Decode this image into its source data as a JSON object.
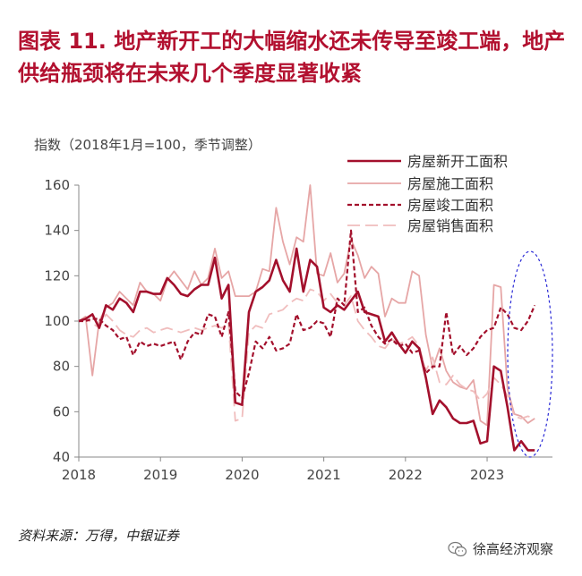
{
  "title": "图表 11. 地产新开工的大幅缩水还未传导至竣工端，地产供给瓶颈将在未来几个季度显著收紧",
  "source_note": "资料来源：万得，中银证券",
  "watermark": "徐高经济观察",
  "colors": {
    "title": "#b2102f",
    "new_starts": "#a3102c",
    "under_construction": "#e6a6a6",
    "completions": "#a3102c",
    "sales": "#f0bdbd",
    "ellipse": "#2a2ad6",
    "axis": "#888888"
  },
  "chart_data": {
    "type": "line",
    "ylabel": "指数（2018年1月=100，季节调整）",
    "ylim": [
      40,
      160
    ],
    "yticks": [
      40,
      60,
      80,
      100,
      120,
      140,
      160
    ],
    "xlim": [
      2018,
      2023.8
    ],
    "xticks": [
      "2018",
      "2019",
      "2020",
      "2021",
      "2022",
      "2023"
    ],
    "annotation": "dashed blue ellipse highlighting 2023 divergence between completions and new starts",
    "series": [
      {
        "name": "房屋新开工面积",
        "style": "solid-thick",
        "x": [
          2018.0,
          2018.083,
          2018.167,
          2018.25,
          2018.333,
          2018.417,
          2018.5,
          2018.583,
          2018.667,
          2018.75,
          2018.833,
          2018.917,
          2019.0,
          2019.083,
          2019.167,
          2019.25,
          2019.333,
          2019.417,
          2019.5,
          2019.583,
          2019.667,
          2019.75,
          2019.833,
          2019.917,
          2020.0,
          2020.083,
          2020.167,
          2020.25,
          2020.333,
          2020.417,
          2020.5,
          2020.583,
          2020.667,
          2020.75,
          2020.833,
          2020.917,
          2021.0,
          2021.083,
          2021.167,
          2021.25,
          2021.333,
          2021.417,
          2021.5,
          2021.583,
          2021.667,
          2021.75,
          2021.833,
          2021.917,
          2022.0,
          2022.083,
          2022.167,
          2022.25,
          2022.333,
          2022.417,
          2022.5,
          2022.583,
          2022.667,
          2022.75,
          2022.833,
          2022.917,
          2023.0,
          2023.083,
          2023.167,
          2023.25,
          2023.333,
          2023.417,
          2023.5,
          2023.583
        ],
        "values": [
          100,
          101,
          103,
          97,
          107,
          105,
          110,
          108,
          104,
          113,
          113,
          112,
          112,
          119,
          116,
          112,
          111,
          114,
          116,
          116,
          128,
          110,
          116,
          64,
          63,
          104,
          113,
          115,
          118,
          127,
          118,
          113,
          132,
          113,
          127,
          124,
          106,
          104,
          107,
          105,
          109,
          113,
          104,
          103,
          102,
          91,
          95,
          90,
          86,
          91,
          88,
          75,
          59,
          65,
          62,
          57,
          55,
          55,
          56,
          46,
          47,
          80,
          78,
          62,
          43,
          47,
          43,
          43
        ]
      },
      {
        "name": "房屋施工面积",
        "style": "solid-thin",
        "x": [
          2018.0,
          2018.083,
          2018.167,
          2018.25,
          2018.333,
          2018.417,
          2018.5,
          2018.583,
          2018.667,
          2018.75,
          2018.833,
          2018.917,
          2019.0,
          2019.083,
          2019.167,
          2019.25,
          2019.333,
          2019.417,
          2019.5,
          2019.583,
          2019.667,
          2019.75,
          2019.833,
          2019.917,
          2020.0,
          2020.083,
          2020.167,
          2020.25,
          2020.333,
          2020.417,
          2020.5,
          2020.583,
          2020.667,
          2020.75,
          2020.833,
          2020.917,
          2021.0,
          2021.083,
          2021.167,
          2021.25,
          2021.333,
          2021.417,
          2021.5,
          2021.583,
          2021.667,
          2021.75,
          2021.833,
          2021.917,
          2022.0,
          2022.083,
          2022.167,
          2022.25,
          2022.333,
          2022.417,
          2022.5,
          2022.583,
          2022.667,
          2022.75,
          2022.833,
          2022.917,
          2023.0,
          2023.083,
          2023.167,
          2023.25,
          2023.333,
          2023.417,
          2023.5,
          2023.583
        ],
        "values": [
          100,
          102,
          76,
          100,
          106,
          108,
          113,
          110,
          107,
          117,
          113,
          112,
          109,
          118,
          122,
          118,
          114,
          122,
          116,
          119,
          132,
          119,
          122,
          111,
          111,
          111,
          113,
          123,
          122,
          150,
          135,
          125,
          137,
          135,
          160,
          121,
          120,
          130,
          117,
          121,
          136,
          129,
          119,
          124,
          121,
          102,
          110,
          108,
          108,
          122,
          120,
          94,
          79,
          88,
          78,
          73,
          71,
          70,
          74,
          56,
          54,
          116,
          115,
          70,
          59,
          58,
          55,
          57
        ]
      },
      {
        "name": "房屋竣工面积",
        "style": "dashed-thick",
        "x": [
          2018.0,
          2018.083,
          2018.167,
          2018.25,
          2018.333,
          2018.417,
          2018.5,
          2018.583,
          2018.667,
          2018.75,
          2018.833,
          2018.917,
          2019.0,
          2019.083,
          2019.167,
          2019.25,
          2019.333,
          2019.417,
          2019.5,
          2019.583,
          2019.667,
          2019.75,
          2019.833,
          2019.917,
          2020.0,
          2020.083,
          2020.167,
          2020.25,
          2020.333,
          2020.417,
          2020.5,
          2020.583,
          2020.667,
          2020.75,
          2020.833,
          2020.917,
          2021.0,
          2021.083,
          2021.167,
          2021.25,
          2021.333,
          2021.417,
          2021.5,
          2021.583,
          2021.667,
          2021.75,
          2021.833,
          2021.917,
          2022.0,
          2022.083,
          2022.167,
          2022.25,
          2022.333,
          2022.417,
          2022.5,
          2022.583,
          2022.667,
          2022.75,
          2022.833,
          2022.917,
          2023.0,
          2023.083,
          2023.167,
          2023.25,
          2023.333,
          2023.417,
          2023.5,
          2023.583
        ],
        "values": [
          100,
          100,
          101,
          101,
          98,
          96,
          92,
          93,
          85,
          91,
          89,
          90,
          89,
          90,
          91,
          83,
          91,
          95,
          94,
          103,
          102,
          93,
          104,
          69,
          66,
          77,
          91,
          88,
          93,
          87,
          88,
          90,
          103,
          96,
          97,
          100,
          99,
          93,
          110,
          107,
          140,
          104,
          106,
          98,
          93,
          90,
          92,
          89,
          90,
          86,
          87,
          77,
          80,
          80,
          104,
          85,
          89,
          85,
          88,
          93,
          96,
          97,
          106,
          103,
          97,
          96,
          100,
          107
        ]
      },
      {
        "name": "房屋销售面积",
        "style": "longdash-thin",
        "x": [
          2018.0,
          2018.083,
          2018.167,
          2018.25,
          2018.333,
          2018.417,
          2018.5,
          2018.583,
          2018.667,
          2018.75,
          2018.833,
          2018.917,
          2019.0,
          2019.083,
          2019.167,
          2019.25,
          2019.333,
          2019.417,
          2019.5,
          2019.583,
          2019.667,
          2019.75,
          2019.833,
          2019.917,
          2020.0,
          2020.083,
          2020.167,
          2020.25,
          2020.333,
          2020.417,
          2020.5,
          2020.583,
          2020.667,
          2020.75,
          2020.833,
          2020.917,
          2021.0,
          2021.083,
          2021.167,
          2021.25,
          2021.333,
          2021.417,
          2021.5,
          2021.583,
          2021.667,
          2021.75,
          2021.833,
          2021.917,
          2022.0,
          2022.083,
          2022.167,
          2022.25,
          2022.333,
          2022.417,
          2022.5,
          2022.583,
          2022.667,
          2022.75,
          2022.833,
          2022.917,
          2023.0,
          2023.083,
          2023.167,
          2023.25,
          2023.333,
          2023.417,
          2023.5,
          2023.583
        ],
        "values": [
          100,
          101,
          99,
          97,
          103,
          100,
          96,
          94,
          93,
          96,
          97,
          95,
          96,
          97,
          96,
          95,
          96,
          97,
          96,
          97,
          98,
          97,
          99,
          56,
          57,
          95,
          98,
          97,
          103,
          104,
          105,
          108,
          110,
          109,
          114,
          113,
          109,
          112,
          108,
          107,
          111,
          100,
          96,
          93,
          89,
          88,
          92,
          90,
          91,
          93,
          89,
          78,
          84,
          73,
          72,
          76,
          72,
          70,
          69,
          65,
          68,
          75,
          72,
          67,
          58,
          57,
          58,
          57
        ]
      }
    ]
  }
}
